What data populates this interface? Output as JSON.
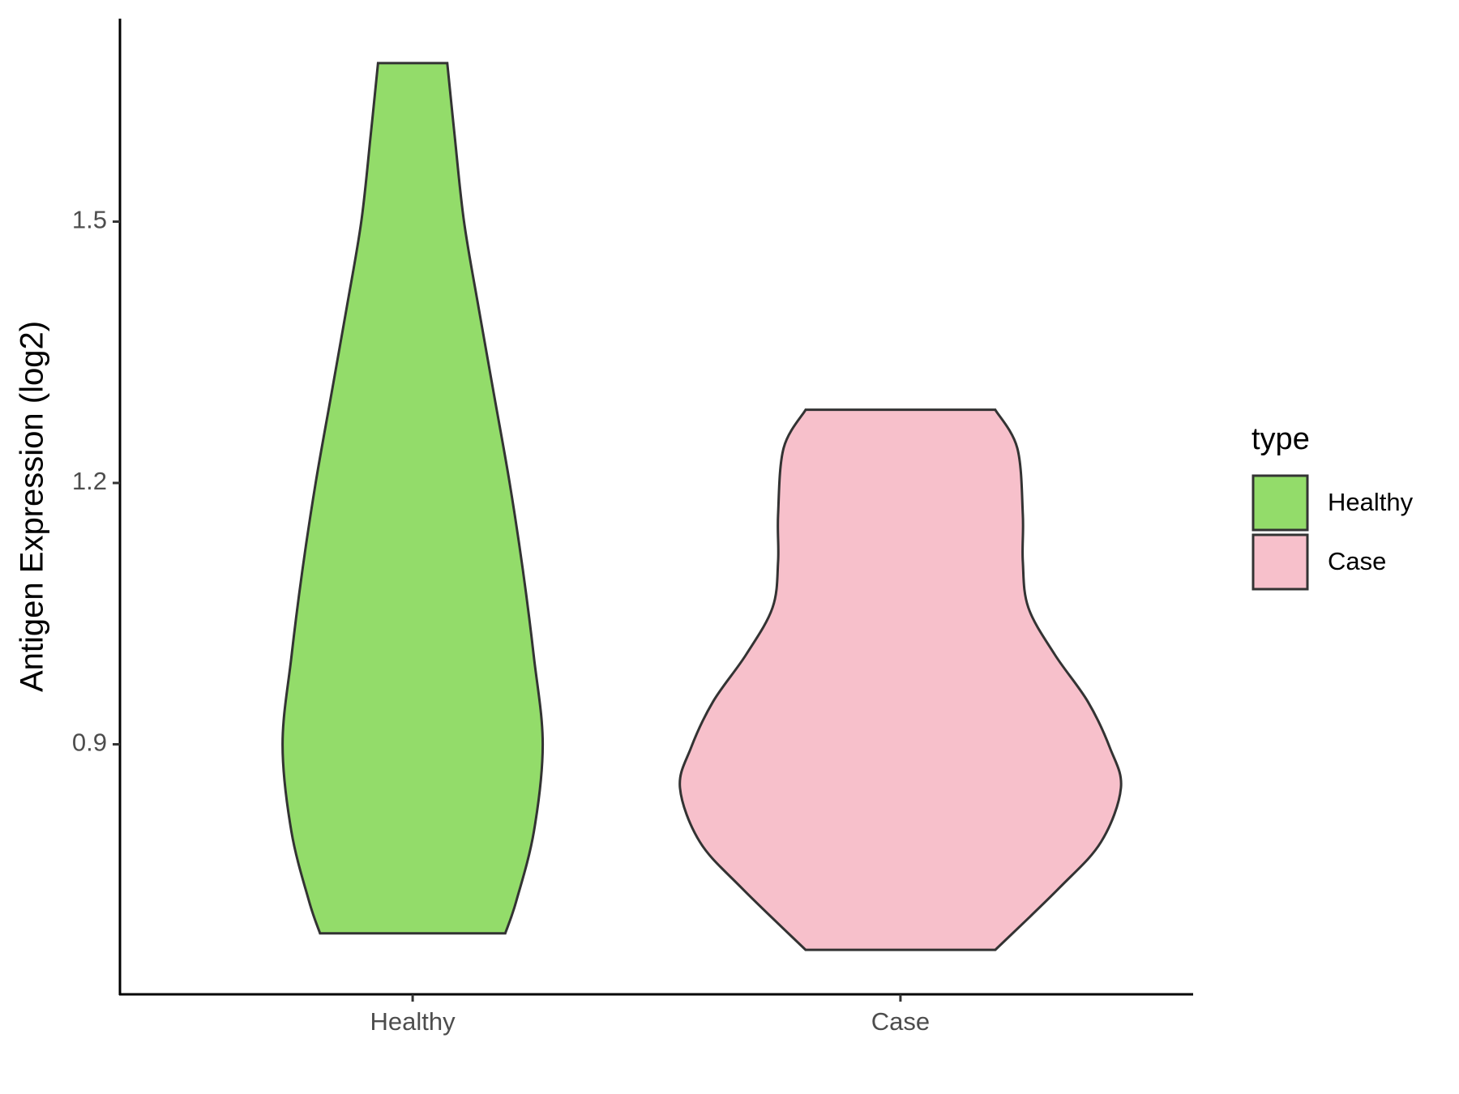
{
  "chart_data": {
    "type": "violin",
    "y_label": "Antigen Expression (log2)",
    "categories": [
      "Healthy",
      "Case"
    ],
    "legend_title": "type",
    "legend_position": "right",
    "ylim": [
      0.613,
      1.733
    ],
    "yticks": [
      0.9,
      1.2,
      1.5
    ],
    "series": [
      {
        "name": "Healthy",
        "color": "#93dc6a",
        "y": [
          0.683,
          0.72,
          0.8,
          0.9,
          1.0,
          1.1,
          1.2,
          1.3,
          1.4,
          1.5,
          1.6,
          1.682
        ],
        "density": [
          0.42,
          0.47,
          0.55,
          0.59,
          0.55,
          0.5,
          0.44,
          0.37,
          0.3,
          0.233,
          0.19,
          0.157
        ]
      },
      {
        "name": "Case",
        "color": "#f7c0cb",
        "y": [
          0.664,
          0.735,
          0.788,
          0.85,
          0.896,
          0.949,
          1.003,
          1.057,
          1.11,
          1.164,
          1.24,
          1.284
        ],
        "density": [
          0.43,
          0.72,
          0.91,
          1.0,
          0.95,
          0.85,
          0.7,
          0.58,
          0.555,
          0.555,
          0.53,
          0.43
        ]
      }
    ]
  }
}
